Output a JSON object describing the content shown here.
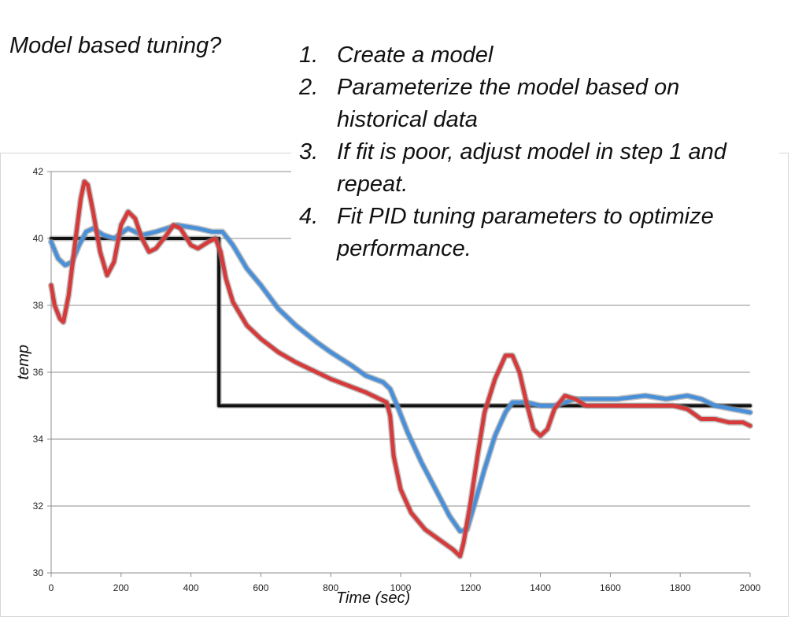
{
  "slide": {
    "title": "Model based tuning?",
    "steps": [
      {
        "num": "1.",
        "text": "Create a model"
      },
      {
        "num": "2.",
        "text": "Parameterize the model based on historical data"
      },
      {
        "num": "3.",
        "text": "If fit is poor, adjust model in step 1 and repeat."
      },
      {
        "num": "4.",
        "text": "Fit PID tuning parameters to optimize performance."
      }
    ]
  },
  "chart_data": {
    "type": "line",
    "title": "",
    "xlabel": "Time (sec)",
    "ylabel": "temp",
    "xlim": [
      0,
      2000
    ],
    "ylim": [
      30,
      42
    ],
    "xticks": [
      0,
      200,
      400,
      600,
      800,
      1000,
      1200,
      1400,
      1600,
      1800,
      2000
    ],
    "yticks": [
      30,
      32,
      34,
      36,
      38,
      40,
      42
    ],
    "grid": "horizontal",
    "legend": "none",
    "series": [
      {
        "color": "#111111",
        "points": [
          [
            0,
            40
          ],
          [
            480,
            40
          ],
          [
            480,
            35
          ],
          [
            2000,
            35
          ]
        ]
      },
      {
        "color": "#4a90d9",
        "points": [
          [
            0,
            39.9
          ],
          [
            20,
            39.4
          ],
          [
            40,
            39.2
          ],
          [
            60,
            39.3
          ],
          [
            80,
            39.8
          ],
          [
            100,
            40.2
          ],
          [
            120,
            40.3
          ],
          [
            150,
            40.1
          ],
          [
            180,
            40.0
          ],
          [
            220,
            40.3
          ],
          [
            260,
            40.1
          ],
          [
            300,
            40.2
          ],
          [
            360,
            40.4
          ],
          [
            420,
            40.3
          ],
          [
            460,
            40.2
          ],
          [
            490,
            40.2
          ],
          [
            520,
            39.8
          ],
          [
            560,
            39.1
          ],
          [
            600,
            38.6
          ],
          [
            650,
            37.9
          ],
          [
            700,
            37.4
          ],
          [
            760,
            36.9
          ],
          [
            800,
            36.6
          ],
          [
            860,
            36.2
          ],
          [
            900,
            35.9
          ],
          [
            950,
            35.7
          ],
          [
            970,
            35.5
          ],
          [
            990,
            35.0
          ],
          [
            1020,
            34.2
          ],
          [
            1060,
            33.3
          ],
          [
            1100,
            32.5
          ],
          [
            1140,
            31.7
          ],
          [
            1170,
            31.25
          ],
          [
            1190,
            31.3
          ],
          [
            1210,
            32.0
          ],
          [
            1240,
            33.1
          ],
          [
            1270,
            34.1
          ],
          [
            1300,
            34.8
          ],
          [
            1320,
            35.1
          ],
          [
            1360,
            35.1
          ],
          [
            1400,
            35.0
          ],
          [
            1440,
            35.0
          ],
          [
            1500,
            35.2
          ],
          [
            1560,
            35.2
          ],
          [
            1620,
            35.2
          ],
          [
            1700,
            35.3
          ],
          [
            1760,
            35.2
          ],
          [
            1820,
            35.3
          ],
          [
            1860,
            35.2
          ],
          [
            1900,
            35.0
          ],
          [
            1950,
            34.9
          ],
          [
            2000,
            34.8
          ]
        ]
      },
      {
        "color": "#d63b3b",
        "points": [
          [
            0,
            38.6
          ],
          [
            10,
            38.0
          ],
          [
            25,
            37.6
          ],
          [
            35,
            37.5
          ],
          [
            50,
            38.3
          ],
          [
            70,
            40.0
          ],
          [
            85,
            41.2
          ],
          [
            95,
            41.7
          ],
          [
            105,
            41.6
          ],
          [
            120,
            40.8
          ],
          [
            140,
            39.6
          ],
          [
            160,
            38.9
          ],
          [
            180,
            39.3
          ],
          [
            200,
            40.4
          ],
          [
            220,
            40.8
          ],
          [
            240,
            40.6
          ],
          [
            260,
            40.0
          ],
          [
            280,
            39.6
          ],
          [
            300,
            39.7
          ],
          [
            330,
            40.1
          ],
          [
            350,
            40.4
          ],
          [
            370,
            40.3
          ],
          [
            400,
            39.8
          ],
          [
            420,
            39.7
          ],
          [
            450,
            39.9
          ],
          [
            470,
            40.0
          ],
          [
            485,
            39.6
          ],
          [
            500,
            38.8
          ],
          [
            520,
            38.1
          ],
          [
            560,
            37.4
          ],
          [
            600,
            37.0
          ],
          [
            650,
            36.6
          ],
          [
            700,
            36.3
          ],
          [
            760,
            36.0
          ],
          [
            800,
            35.8
          ],
          [
            850,
            35.6
          ],
          [
            900,
            35.4
          ],
          [
            940,
            35.2
          ],
          [
            960,
            35.1
          ],
          [
            970,
            34.7
          ],
          [
            980,
            33.5
          ],
          [
            1000,
            32.5
          ],
          [
            1030,
            31.8
          ],
          [
            1070,
            31.3
          ],
          [
            1110,
            31.0
          ],
          [
            1150,
            30.7
          ],
          [
            1170,
            30.5
          ],
          [
            1180,
            30.9
          ],
          [
            1200,
            32.1
          ],
          [
            1220,
            33.5
          ],
          [
            1240,
            34.8
          ],
          [
            1270,
            35.8
          ],
          [
            1300,
            36.5
          ],
          [
            1320,
            36.5
          ],
          [
            1340,
            36.0
          ],
          [
            1360,
            35.1
          ],
          [
            1380,
            34.3
          ],
          [
            1400,
            34.1
          ],
          [
            1420,
            34.3
          ],
          [
            1440,
            34.9
          ],
          [
            1470,
            35.3
          ],
          [
            1500,
            35.2
          ],
          [
            1530,
            35.0
          ],
          [
            1560,
            35.0
          ],
          [
            1600,
            35.0
          ],
          [
            1660,
            35.0
          ],
          [
            1700,
            35.0
          ],
          [
            1740,
            35.0
          ],
          [
            1780,
            35.0
          ],
          [
            1820,
            34.9
          ],
          [
            1860,
            34.6
          ],
          [
            1900,
            34.6
          ],
          [
            1940,
            34.5
          ],
          [
            1980,
            34.5
          ],
          [
            2000,
            34.4
          ]
        ]
      }
    ]
  }
}
